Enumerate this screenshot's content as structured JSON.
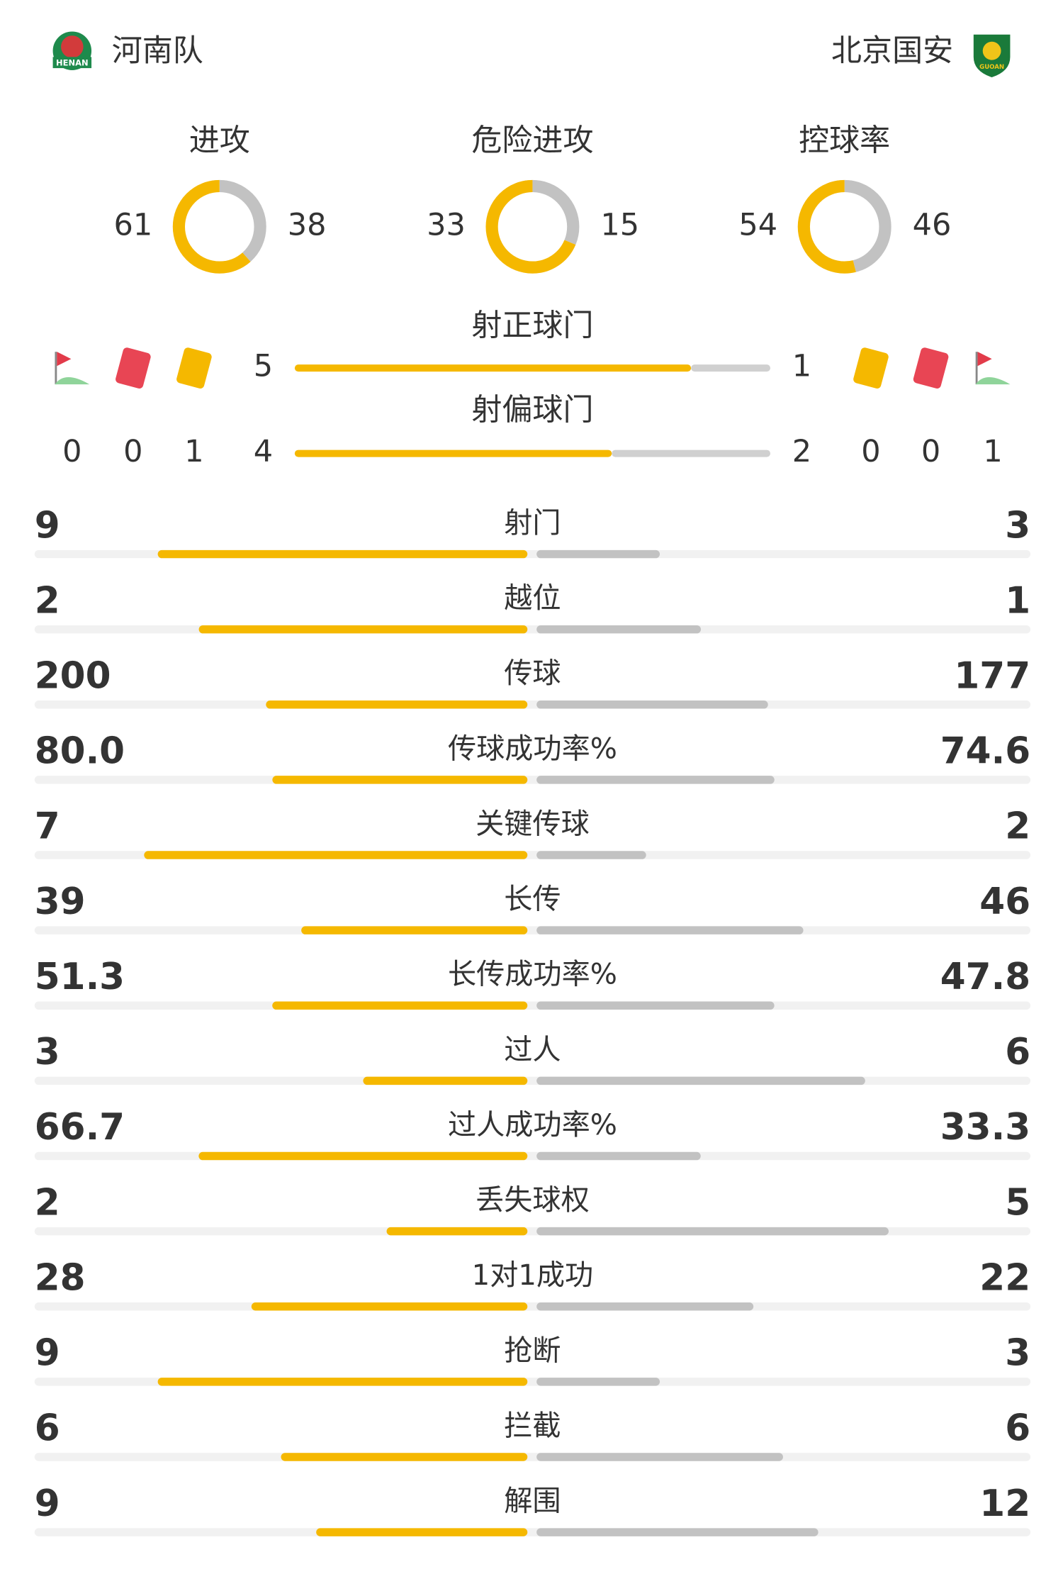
{
  "header": {
    "home_team": "河南队",
    "away_team": "北京国安",
    "home_logo_text": "HENAN",
    "away_logo_text": "GUOAN"
  },
  "rings": [
    {
      "label": "进攻",
      "home": 61,
      "away": 38
    },
    {
      "label": "危险进攻",
      "home": 33,
      "away": 15
    },
    {
      "label": "控球率",
      "home": 54,
      "away": 46
    }
  ],
  "shots_on_target": {
    "label": "射正球门",
    "home": 5,
    "away": 1
  },
  "shots_off_target": {
    "label": "射偏球门",
    "home": 4,
    "away": 2
  },
  "discipline": {
    "home": {
      "corners": 0,
      "red_cards": 0,
      "yellow_cards": 1
    },
    "away": {
      "yellow_cards": 0,
      "red_cards": 0,
      "corners": 1
    }
  },
  "stats": [
    {
      "label": "射门",
      "home": 9,
      "away": 3
    },
    {
      "label": "越位",
      "home": 2,
      "away": 1
    },
    {
      "label": "传球",
      "home": 200,
      "away": 177
    },
    {
      "label": "传球成功率%",
      "home": 80,
      "home_label": "80.0",
      "away": 74.6
    },
    {
      "label": "关键传球",
      "home": 7,
      "away": 2
    },
    {
      "label": "长传",
      "home": 39,
      "away": 46
    },
    {
      "label": "长传成功率%",
      "home": 51.3,
      "away": 47.8
    },
    {
      "label": "过人",
      "home": 3,
      "away": 6
    },
    {
      "label": "过人成功率%",
      "home": 66.7,
      "away": 33.3
    },
    {
      "label": "丢失球权",
      "home": 2,
      "away": 5
    },
    {
      "label": "1对1成功",
      "home": 28,
      "away": 22
    },
    {
      "label": "抢断",
      "home": 9,
      "away": 3
    },
    {
      "label": "拦截",
      "home": 6,
      "away": 6
    },
    {
      "label": "解围",
      "home": 9,
      "away": 12
    }
  ]
}
